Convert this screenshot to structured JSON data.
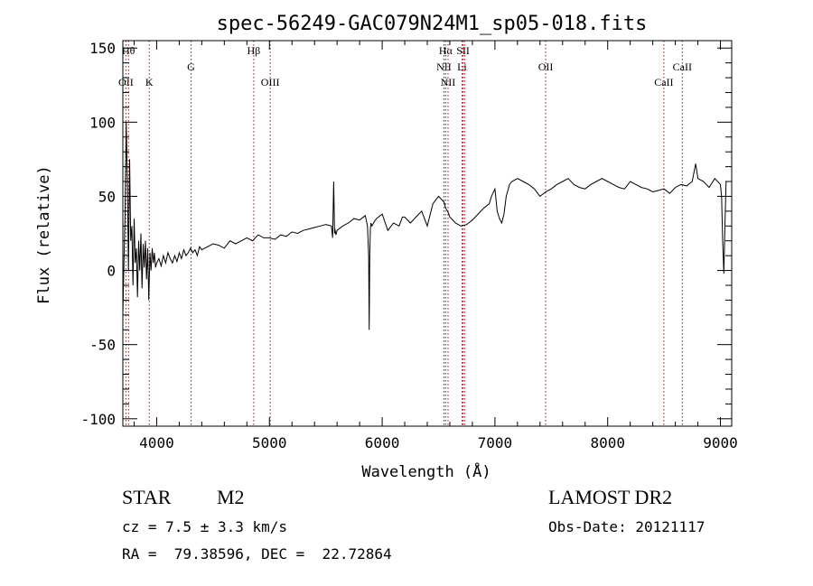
{
  "chart_data": {
    "type": "line",
    "title": "spec-56249-GAC079N24M1_sp05-018.fits",
    "xlabel": "Wavelength (Å)",
    "ylabel": "Flux (relative)",
    "xlim": [
      3700,
      9100
    ],
    "ylim": [
      -105,
      155
    ],
    "xticks": [
      4000,
      5000,
      6000,
      7000,
      8000,
      9000
    ],
    "yticks": [
      -100,
      -50,
      0,
      50,
      100,
      150
    ],
    "x_minor_step": 200,
    "y_minor_step": 10,
    "grid": false,
    "line_color": "#000000",
    "marker_color": "#a01010",
    "series": [
      {
        "x": [
          3700,
          3710,
          3720,
          3730,
          3740,
          3750,
          3760,
          3770,
          3780,
          3790,
          3800,
          3810,
          3820,
          3830,
          3840,
          3850,
          3860,
          3870,
          3880,
          3890,
          3900,
          3910,
          3920,
          3930,
          3940,
          3950,
          3960,
          3970,
          3980,
          3990,
          4000,
          4020,
          4040,
          4060,
          4080,
          4100,
          4120,
          4140,
          4160,
          4180,
          4200,
          4220,
          4240,
          4260,
          4280,
          4300,
          4320,
          4340,
          4360,
          4380,
          4400,
          4450,
          4500,
          4550,
          4600,
          4650,
          4700,
          4750,
          4800,
          4850,
          4900,
          4950,
          5000,
          5050,
          5100,
          5150,
          5200,
          5250,
          5300,
          5350,
          5400,
          5450,
          5500,
          5550,
          5560,
          5570,
          5578,
          5580,
          5590,
          5600,
          5650,
          5700,
          5750,
          5800,
          5850,
          5870,
          5880,
          5885,
          5890,
          5895,
          5900,
          5910,
          5930,
          5950,
          6000,
          6050,
          6100,
          6150,
          6180,
          6200,
          6250,
          6300,
          6350,
          6400,
          6450,
          6500,
          6550,
          6563,
          6580,
          6600,
          6650,
          6700,
          6750,
          6800,
          6850,
          6900,
          6950,
          6970,
          7000,
          7020,
          7040,
          7060,
          7080,
          7100,
          7130,
          7150,
          7200,
          7250,
          7300,
          7350,
          7400,
          7450,
          7500,
          7550,
          7600,
          7650,
          7700,
          7750,
          7800,
          7850,
          7900,
          7950,
          8000,
          8050,
          8100,
          8150,
          8200,
          8250,
          8300,
          8350,
          8400,
          8450,
          8500,
          8550,
          8600,
          8650,
          8700,
          8750,
          8780,
          8800,
          8850,
          8900,
          8950,
          9000,
          9010,
          9020,
          9030,
          9040,
          9050
        ],
        "y": [
          -30,
          5,
          40,
          100,
          60,
          0,
          75,
          20,
          30,
          -10,
          35,
          5,
          15,
          -18,
          20,
          0,
          25,
          -12,
          18,
          2,
          20,
          -6,
          15,
          -20,
          12,
          0,
          15,
          5,
          12,
          2,
          5,
          8,
          3,
          10,
          5,
          12,
          8,
          5,
          10,
          6,
          12,
          8,
          14,
          10,
          12,
          15,
          12,
          14,
          10,
          16,
          14,
          16,
          18,
          17,
          15,
          20,
          18,
          20,
          22,
          20,
          24,
          22,
          22,
          21,
          24,
          23,
          26,
          25,
          27,
          28,
          29,
          30,
          31,
          30,
          22,
          60,
          25,
          28,
          24,
          27,
          30,
          32,
          35,
          34,
          37,
          30,
          10,
          -40,
          10,
          28,
          32,
          30,
          33,
          35,
          38,
          27,
          32,
          30,
          36,
          36,
          32,
          36,
          40,
          30,
          45,
          50,
          46,
          42,
          40,
          36,
          32,
          30,
          31,
          34,
          38,
          42,
          45,
          50,
          55,
          40,
          35,
          32,
          38,
          50,
          58,
          60,
          62,
          60,
          58,
          55,
          50,
          53,
          55,
          58,
          60,
          62,
          58,
          56,
          55,
          58,
          60,
          62,
          60,
          58,
          56,
          55,
          60,
          58,
          56,
          55,
          53,
          54,
          55,
          52,
          56,
          58,
          57,
          60,
          72,
          62,
          60,
          56,
          62,
          58,
          50,
          20,
          -2,
          30,
          60
        ]
      }
    ],
    "line_markers": [
      {
        "x": 3727,
        "label": "OII",
        "tier": 3
      },
      {
        "x": 3750,
        "label": "Hθ",
        "tier": 1
      },
      {
        "x": 3934,
        "label": "K",
        "tier": 3
      },
      {
        "x": 4305,
        "label": "G",
        "tier": 2
      },
      {
        "x": 4861,
        "label": "Hβ",
        "tier": 1
      },
      {
        "x": 5007,
        "label": "OIII",
        "tier": 3
      },
      {
        "x": 6548,
        "label": "NII",
        "tier": 2
      },
      {
        "x": 6563,
        "label": "Hα",
        "tier": 1
      },
      {
        "x": 6584,
        "label": "NII",
        "tier": 3
      },
      {
        "x": 6708,
        "label": "Li",
        "tier": 2
      },
      {
        "x": 6717,
        "label": "SII",
        "tier": 1
      },
      {
        "x": 6731,
        "label": "",
        "tier": 1
      },
      {
        "x": 7450,
        "label": "OII",
        "tier": 2
      },
      {
        "x": 8498,
        "label": "CaII",
        "tier": 3
      },
      {
        "x": 8662,
        "label": "CaII",
        "tier": 2
      }
    ]
  },
  "info": {
    "object_type": "STAR",
    "subclass": "M2",
    "survey": "LAMOST DR2",
    "cz": "cz = 7.5 ± 3.3 km/s",
    "obs_date": "Obs-Date: 20121117",
    "coords": "RA =  79.38596, DEC =  22.72864"
  }
}
